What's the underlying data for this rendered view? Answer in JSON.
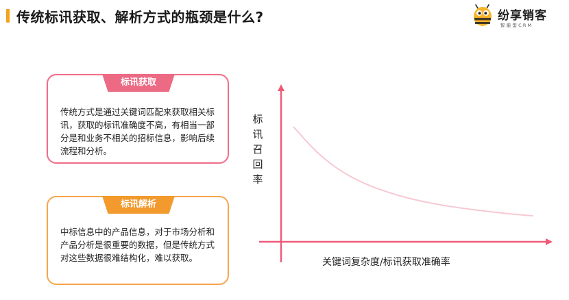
{
  "header": {
    "title": "传统标讯获取、解析方式的瓶颈是什么?",
    "accent_color": "#f6a21a"
  },
  "logo": {
    "name": "纷享销客",
    "subtitle": "智能型CRM",
    "icon": "bee-mascot-icon"
  },
  "cards": [
    {
      "tag": "标讯获取",
      "body": "传统方式是通过关键词匹配来获取相关标讯，获取的标讯准确度不高，有相当一部分是和业务不相关的招标信息，影响后续流程和分析。",
      "color": "#ec6a84"
    },
    {
      "tag": "标讯解析",
      "body": "中标信息中的产品信息，对于市场分析和产品分析是很重要的数据，但是传统方式对这些数据很难结构化，难以获取。",
      "color": "#f39a2f"
    }
  ],
  "chart_data": {
    "type": "line",
    "ylabel": "标讯召回率",
    "xlabel": "关键词复杂度/标讯获取准确率",
    "axis_color": "#ef5a78",
    "curve_color": "#f7c8d3",
    "grid": false,
    "ticks": false,
    "series": [
      {
        "x": [
          0,
          0.1,
          0.2,
          0.3,
          0.4,
          0.5,
          0.6,
          0.7,
          0.8,
          0.9,
          1.0
        ],
        "y": [
          1.0,
          0.72,
          0.53,
          0.4,
          0.31,
          0.24,
          0.19,
          0.15,
          0.12,
          0.09,
          0.07
        ]
      }
    ]
  }
}
